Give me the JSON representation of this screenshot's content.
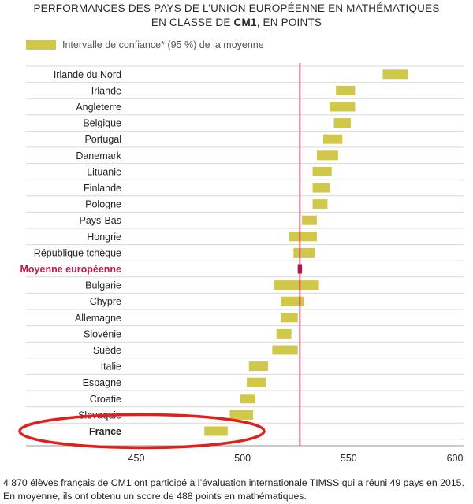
{
  "chart_data": {
    "type": "range-bar",
    "title_line1": "PERFORMANCES DES PAYS DE L’UNION EUROPÉENNE EN MATHÉMATIQUES",
    "title_line2_prefix": "EN CLASSE DE ",
    "title_line2_bold": "CM1",
    "title_line2_suffix": ", EN POINTS",
    "legend_label": "Intervalle de confiance* (95 %) de la moyenne",
    "xlim": [
      400,
      600
    ],
    "xticks": [
      450,
      500,
      550,
      600
    ],
    "reference_value": 527,
    "colors": {
      "bar": "#d1c748",
      "reference": "#b0163e",
      "highlight_label": "#c8174a",
      "circle": "#e0201c",
      "grid": "#d8d8d8"
    },
    "rows": [
      {
        "label": "Irlande du Nord",
        "low": 566,
        "high": 578
      },
      {
        "label": "Irlande",
        "low": 544,
        "high": 553
      },
      {
        "label": "Angleterre",
        "low": 541,
        "high": 553
      },
      {
        "label": "Belgique",
        "low": 543,
        "high": 551
      },
      {
        "label": "Portugal",
        "low": 538,
        "high": 547
      },
      {
        "label": "Danemark",
        "low": 535,
        "high": 545
      },
      {
        "label": "Lituanie",
        "low": 533,
        "high": 542
      },
      {
        "label": "Finlande",
        "low": 533,
        "high": 541
      },
      {
        "label": "Pologne",
        "low": 533,
        "high": 540
      },
      {
        "label": "Pays-Bas",
        "low": 528,
        "high": 535
      },
      {
        "label": "Hongrie",
        "low": 522,
        "high": 535
      },
      {
        "label": "République tchèque",
        "low": 524,
        "high": 534
      },
      {
        "label": "Moyenne européenne",
        "low": 526,
        "high": 528,
        "highlight": true
      },
      {
        "label": "Bulgarie",
        "low": 515,
        "high": 536
      },
      {
        "label": "Chypre",
        "low": 518,
        "high": 529
      },
      {
        "label": "Allemagne",
        "low": 518,
        "high": 526
      },
      {
        "label": "Slovénie",
        "low": 516,
        "high": 523
      },
      {
        "label": "Suède",
        "low": 514,
        "high": 526
      },
      {
        "label": "Italie",
        "low": 503,
        "high": 512
      },
      {
        "label": "Espagne",
        "low": 502,
        "high": 511
      },
      {
        "label": "Croatie",
        "low": 499,
        "high": 506
      },
      {
        "label": "Slovaquie",
        "low": 494,
        "high": 505
      },
      {
        "label": "France",
        "low": 482,
        "high": 493,
        "bold": true,
        "circled": true
      }
    ]
  },
  "caption": "4 870 élèves français de CM1 ont participé à l’évaluation internationale TIMSS qui a réuni 49 pays en 2015. En moyenne, ils ont obtenu un score de 488 points en mathématiques."
}
